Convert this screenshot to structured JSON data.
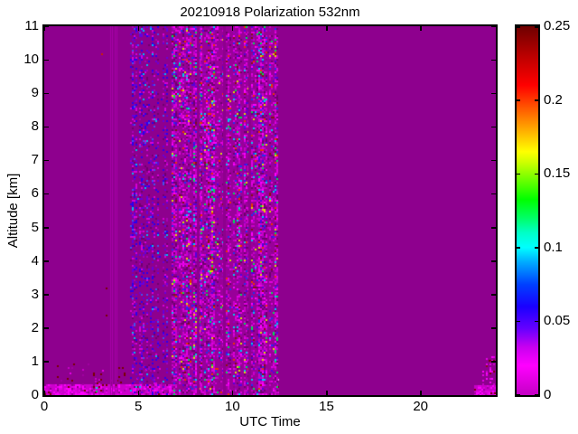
{
  "chart_data": {
    "type": "heatmap",
    "title": "20210918 Polarization 532nm",
    "xlabel": "UTC Time",
    "ylabel": "Altitude [km]",
    "x_range": [
      0,
      24
    ],
    "y_range": [
      0,
      11
    ],
    "grid": false,
    "legend": "colorbar-right",
    "background_value": 0,
    "background_color": "#8E008E",
    "x_ticks": [
      {
        "value": 0,
        "label": "0"
      },
      {
        "value": 5,
        "label": "5"
      },
      {
        "value": 10,
        "label": "10"
      },
      {
        "value": 15,
        "label": "15"
      },
      {
        "value": 20,
        "label": "20"
      }
    ],
    "y_ticks": [
      {
        "value": 0,
        "label": "0"
      },
      {
        "value": 1,
        "label": "1"
      },
      {
        "value": 2,
        "label": "2"
      },
      {
        "value": 3,
        "label": "3"
      },
      {
        "value": 4,
        "label": "4"
      },
      {
        "value": 5,
        "label": "5"
      },
      {
        "value": 6,
        "label": "6"
      },
      {
        "value": 7,
        "label": "7"
      },
      {
        "value": 8,
        "label": "8"
      },
      {
        "value": 9,
        "label": "9"
      },
      {
        "value": 10,
        "label": "10"
      },
      {
        "value": 11,
        "label": "11"
      }
    ],
    "colorbar": {
      "range": [
        0,
        0.25
      ],
      "ticks": [
        {
          "value": 0.0,
          "label": "0"
        },
        {
          "value": 0.05,
          "label": "0.05"
        },
        {
          "value": 0.1,
          "label": "0.1"
        },
        {
          "value": 0.15,
          "label": "0.15"
        },
        {
          "value": 0.2,
          "label": "0.2"
        },
        {
          "value": 0.25,
          "label": "0.25"
        }
      ],
      "colormap_stops": [
        {
          "pos": 0.0,
          "color": "#C400C4"
        },
        {
          "pos": 0.08,
          "color": "#FF00FF"
        },
        {
          "pos": 0.13,
          "color": "#C800F0"
        },
        {
          "pos": 0.18,
          "color": "#6600FF"
        },
        {
          "pos": 0.24,
          "color": "#1A00FF"
        },
        {
          "pos": 0.3,
          "color": "#0040FF"
        },
        {
          "pos": 0.36,
          "color": "#00AAFF"
        },
        {
          "pos": 0.4,
          "color": "#00FFFF"
        },
        {
          "pos": 0.44,
          "color": "#00FFC8"
        },
        {
          "pos": 0.48,
          "color": "#00FF66"
        },
        {
          "pos": 0.53,
          "color": "#00FF00"
        },
        {
          "pos": 0.58,
          "color": "#66FF00"
        },
        {
          "pos": 0.63,
          "color": "#CCFF00"
        },
        {
          "pos": 0.66,
          "color": "#FFFF00"
        },
        {
          "pos": 0.72,
          "color": "#FFAA00"
        },
        {
          "pos": 0.78,
          "color": "#FF5500"
        },
        {
          "pos": 0.84,
          "color": "#FF0000"
        },
        {
          "pos": 0.92,
          "color": "#BB0000"
        },
        {
          "pos": 1.0,
          "color": "#6E0000"
        }
      ]
    },
    "noise_bands": [
      {
        "name": "boundary-layer-bottom",
        "utc": [
          0,
          12.45
        ],
        "alt": [
          0,
          0.33
        ],
        "fill": "#CC00CC",
        "density": 0.5,
        "cell": 2,
        "col_var": true,
        "gap_prob": 0.05,
        "palette": [
          {
            "c": "#FF00FF",
            "w": 0.3
          },
          {
            "c": "#E800E8",
            "w": 0.22
          },
          {
            "c": "#AA00AA",
            "w": 0.18
          },
          {
            "c": "#8E008E",
            "w": 0.12
          },
          {
            "c": "#7A0000",
            "w": 0.12
          },
          {
            "c": "#D800D8",
            "w": 0.06
          }
        ]
      },
      {
        "name": "boundary-layer-top-speckle",
        "utc": [
          0.1,
          5.6
        ],
        "alt": [
          0.33,
          0.95
        ],
        "density": 0.07,
        "cell": 2,
        "col_var": true,
        "gap_prob": 0.35,
        "palette": [
          {
            "c": "#7A0000",
            "w": 0.4
          },
          {
            "c": "#C800C8",
            "w": 0.3
          },
          {
            "c": "#A000A0",
            "w": 0.2
          },
          {
            "c": "#E800E8",
            "w": 0.1
          }
        ]
      },
      {
        "name": "boundary-layer-haze-mid",
        "utc": [
          6.8,
          12.45
        ],
        "alt": [
          0.33,
          0.6
        ],
        "density": 0.4,
        "cell": 2,
        "col_var": false,
        "gap_prob": 0,
        "palette": [
          {
            "c": "#D966D9",
            "w": 0.25
          },
          {
            "c": "#CC33CC",
            "w": 0.35
          },
          {
            "c": "#B200B2",
            "w": 0.25
          },
          {
            "c": "#E8A0E8",
            "w": 0.15
          }
        ]
      },
      {
        "name": "early-morning-columns",
        "utc": [
          2.5,
          3.1
        ],
        "alt": [
          0,
          0.85
        ],
        "density": 0.13,
        "cell": 2,
        "col_var": true,
        "gap_prob": 0.3,
        "palette": [
          {
            "c": "#C800C8",
            "w": 0.35
          },
          {
            "c": "#7A0000",
            "w": 0.3
          },
          {
            "c": "#E800E8",
            "w": 0.25
          },
          {
            "c": "#00CCAA",
            "w": 0.1
          }
        ]
      },
      {
        "name": "blue-noise-band",
        "utc": [
          4.55,
          6.55
        ],
        "alt": [
          0,
          11
        ],
        "density": 0.3,
        "cell": 2,
        "col_var": true,
        "gap_prob": 0.12,
        "palette": [
          {
            "c": "#6600DD",
            "w": 0.26
          },
          {
            "c": "#2A00EE",
            "w": 0.2
          },
          {
            "c": "#D800D8",
            "w": 0.18
          },
          {
            "c": "#A800B8",
            "w": 0.12
          },
          {
            "c": "#4455EE",
            "w": 0.08
          },
          {
            "c": "#00BBEE",
            "w": 0.04
          },
          {
            "c": "#6E006E",
            "w": 0.12
          }
        ]
      },
      {
        "name": "dense-multicolor-band",
        "utc": [
          6.75,
          12.4
        ],
        "alt": [
          0,
          11
        ],
        "fill": "#990099",
        "density": 0.55,
        "cell": 2,
        "col_var": true,
        "gap_prob": 0.05,
        "palette": [
          {
            "c": "#C800C8",
            "w": 0.22
          },
          {
            "c": "#E000E0",
            "w": 0.16
          },
          {
            "c": "#FF00FF",
            "w": 0.06
          },
          {
            "c": "#9900BB",
            "w": 0.12
          },
          {
            "c": "#6E006E",
            "w": 0.14
          },
          {
            "c": "#8E008E",
            "w": 0.08
          },
          {
            "c": "#5500DD",
            "w": 0.06
          },
          {
            "c": "#2233EE",
            "w": 0.04
          },
          {
            "c": "#00CCEE",
            "w": 0.035
          },
          {
            "c": "#00DD55",
            "w": 0.025
          },
          {
            "c": "#DDDD00",
            "w": 0.02
          },
          {
            "c": "#EE3300",
            "w": 0.02
          },
          {
            "c": "#881111",
            "w": 0.035
          }
        ]
      },
      {
        "name": "late-evening-band",
        "utc": [
          23.3,
          24
        ],
        "alt": [
          0,
          1.15
        ],
        "density": 0.4,
        "cell": 2,
        "col_var": true,
        "gap_prob": 0.18,
        "palette": [
          {
            "c": "#E800E8",
            "w": 0.3
          },
          {
            "c": "#FF00FF",
            "w": 0.2
          },
          {
            "c": "#C800C8",
            "w": 0.2
          },
          {
            "c": "#7A0000",
            "w": 0.15
          },
          {
            "c": "#8E008E",
            "w": 0.15
          }
        ]
      },
      {
        "name": "late-evening-bottom",
        "utc": [
          22.85,
          24
        ],
        "alt": [
          0,
          0.3
        ],
        "fill": "#C800C8",
        "density": 0.45,
        "cell": 2,
        "col_var": false,
        "gap_prob": 0,
        "palette": [
          {
            "c": "#FF00FF",
            "w": 0.4
          },
          {
            "c": "#E000E0",
            "w": 0.3
          },
          {
            "c": "#A000A0",
            "w": 0.2
          },
          {
            "c": "#7A0000",
            "w": 0.1
          }
        ]
      }
    ],
    "thin_lines": [
      {
        "utc": 3.5,
        "alt": [
          0,
          11
        ],
        "color": "#A800A8",
        "width": 1
      },
      {
        "utc": 3.62,
        "alt": [
          0,
          11
        ],
        "color": "#A800A8",
        "width": 1
      },
      {
        "utc": 3.74,
        "alt": [
          0,
          11
        ],
        "color": "#A800A8",
        "width": 1
      },
      {
        "utc": 3.86,
        "alt": [
          0,
          11
        ],
        "color": "#A800A8",
        "width": 1
      },
      {
        "utc": 8.12,
        "alt": [
          0,
          11
        ],
        "color": "#8E008E",
        "width": 3
      },
      {
        "utc": 9.52,
        "alt": [
          0,
          11
        ],
        "color": "#8E008E",
        "width": 3
      },
      {
        "utc": 10.87,
        "alt": [
          0,
          11
        ],
        "color": "#8E008E",
        "width": 3
      }
    ],
    "speckles": [
      {
        "utc": 2.72,
        "alt": 0.25,
        "color": "#00E8C8"
      },
      {
        "utc": 2.72,
        "alt": 0.14,
        "color": "#00CC66"
      },
      {
        "utc": 3.02,
        "alt": 10.2,
        "color": "#CC2200"
      },
      {
        "utc": 3.27,
        "alt": 3.2,
        "color": "#7A0000"
      },
      {
        "utc": 3.27,
        "alt": 2.4,
        "color": "#7A0000"
      },
      {
        "utc": 1.2,
        "alt": 0.5,
        "color": "#7A0000"
      },
      {
        "utc": 23.6,
        "alt": 1.05,
        "color": "#7A0000"
      },
      {
        "utc": 23.45,
        "alt": 0.9,
        "color": "#881111"
      }
    ]
  }
}
